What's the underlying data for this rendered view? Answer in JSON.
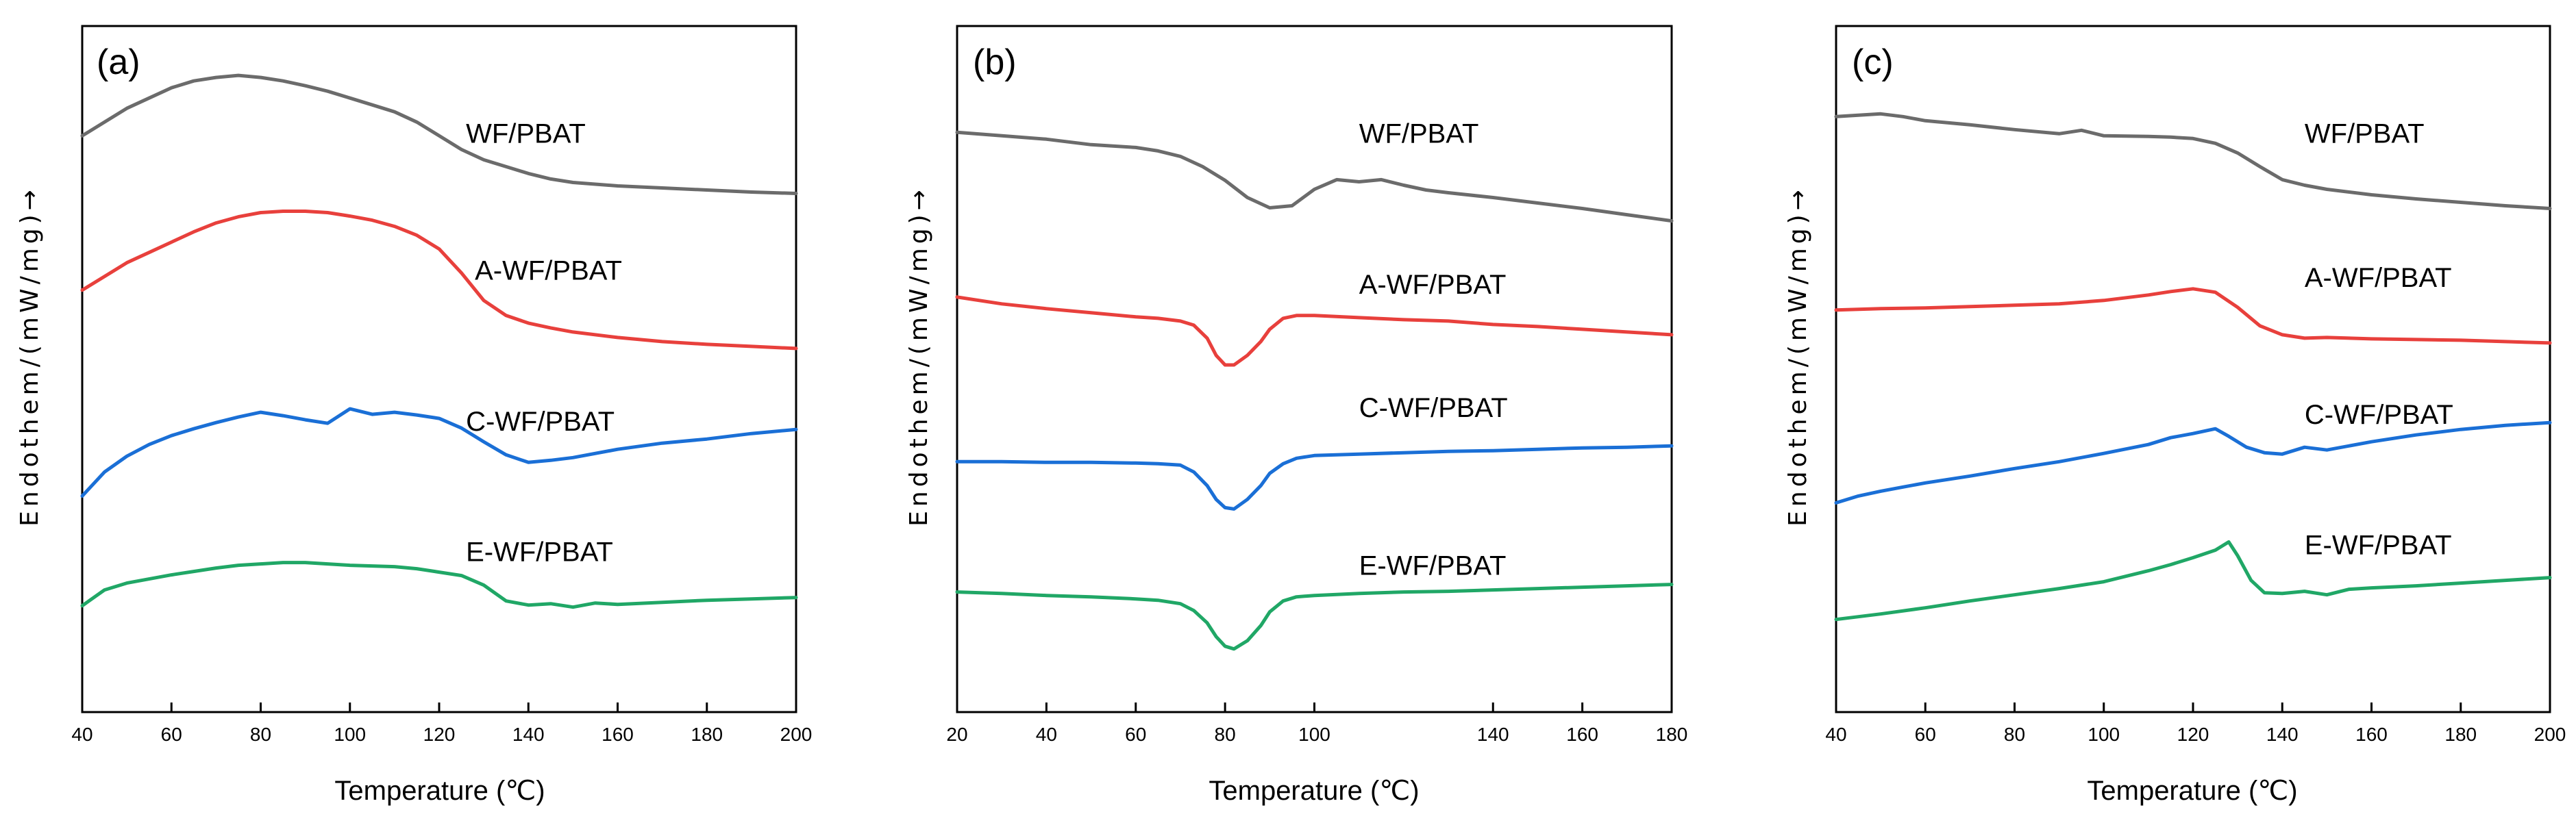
{
  "chart_data": [
    {
      "type": "line",
      "panel_label": "(a)",
      "xlabel": "Temperature (℃)",
      "ylabel": "Endothem/(mW/mg)→",
      "xlim": [
        40,
        200
      ],
      "ylim": [
        0,
        100
      ],
      "xticks": [
        40,
        60,
        80,
        100,
        120,
        140,
        160,
        180,
        200
      ],
      "grid": false,
      "series": [
        {
          "name": "WF/PBAT",
          "color": "#6b6b6b",
          "label_at": [
            126,
            83
          ],
          "x": [
            40,
            45,
            50,
            55,
            60,
            65,
            70,
            75,
            80,
            85,
            90,
            95,
            100,
            105,
            110,
            115,
            120,
            125,
            130,
            135,
            140,
            145,
            150,
            160,
            170,
            180,
            190,
            200
          ],
          "y": [
            84,
            86,
            88,
            89.5,
            91,
            92,
            92.5,
            92.8,
            92.5,
            92,
            91.3,
            90.5,
            89.5,
            88.5,
            87.5,
            86,
            84,
            82,
            80.5,
            79.5,
            78.5,
            77.7,
            77.2,
            76.7,
            76.4,
            76.1,
            75.8,
            75.6
          ]
        },
        {
          "name": "A-WF/PBAT",
          "color": "#e8403c",
          "label_at": [
            128,
            63
          ],
          "x": [
            40,
            45,
            50,
            55,
            60,
            65,
            70,
            75,
            80,
            85,
            90,
            95,
            100,
            105,
            110,
            115,
            120,
            125,
            130,
            135,
            140,
            145,
            150,
            160,
            170,
            180,
            190,
            200
          ],
          "y": [
            61.5,
            63.5,
            65.5,
            67,
            68.5,
            70,
            71.3,
            72.2,
            72.8,
            73,
            73,
            72.8,
            72.3,
            71.7,
            70.8,
            69.5,
            67.5,
            64,
            60,
            57.8,
            56.7,
            56,
            55.4,
            54.6,
            54,
            53.6,
            53.3,
            53
          ]
        },
        {
          "name": "C-WF/PBAT",
          "color": "#1a6fd6",
          "label_at": [
            126,
            41
          ],
          "x": [
            40,
            45,
            50,
            55,
            60,
            65,
            70,
            75,
            80,
            85,
            90,
            95,
            100,
            105,
            110,
            115,
            120,
            125,
            130,
            135,
            140,
            145,
            150,
            160,
            170,
            180,
            190,
            200
          ],
          "y": [
            31.5,
            35,
            37.3,
            39,
            40.3,
            41.3,
            42.2,
            43,
            43.7,
            43.2,
            42.6,
            42.1,
            44.2,
            43.4,
            43.7,
            43.3,
            42.8,
            41.4,
            39.4,
            37.5,
            36.4,
            36.7,
            37.1,
            38.3,
            39.2,
            39.8,
            40.6,
            41.2
          ]
        },
        {
          "name": "E-WF/PBAT",
          "color": "#20a766",
          "label_at": [
            126,
            22
          ],
          "x": [
            40,
            45,
            50,
            55,
            60,
            65,
            70,
            75,
            80,
            85,
            90,
            95,
            100,
            105,
            110,
            115,
            120,
            125,
            130,
            135,
            140,
            145,
            150,
            155,
            160,
            170,
            180,
            190,
            200
          ],
          "y": [
            15.5,
            17.8,
            18.8,
            19.4,
            20,
            20.5,
            21,
            21.4,
            21.6,
            21.8,
            21.8,
            21.6,
            21.4,
            21.3,
            21.2,
            20.9,
            20.4,
            19.9,
            18.5,
            16.2,
            15.6,
            15.8,
            15.3,
            15.9,
            15.7,
            16,
            16.3,
            16.5,
            16.7
          ]
        }
      ]
    },
    {
      "type": "line",
      "panel_label": "(b)",
      "xlabel": "Temperature (℃)",
      "ylabel": "Endothem/(mW/mg)→",
      "xlim": [
        20,
        180
      ],
      "ylim": [
        0,
        100
      ],
      "xticks": [
        20,
        40,
        60,
        80,
        100,
        140,
        160,
        180
      ],
      "grid": false,
      "series": [
        {
          "name": "WF/PBAT",
          "color": "#6b6b6b",
          "label_at": [
            110,
            83
          ],
          "x": [
            20,
            30,
            40,
            50,
            60,
            65,
            70,
            75,
            80,
            85,
            90,
            95,
            100,
            105,
            110,
            115,
            120,
            125,
            130,
            140,
            150,
            160,
            170,
            180
          ],
          "y": [
            84.5,
            84,
            83.5,
            82.7,
            82.3,
            81.8,
            81,
            79.5,
            77.5,
            75,
            73.5,
            73.8,
            76.2,
            77.6,
            77.3,
            77.6,
            76.8,
            76.1,
            75.7,
            75,
            74.2,
            73.4,
            72.5,
            71.6
          ]
        },
        {
          "name": "A-WF/PBAT",
          "color": "#e8403c",
          "label_at": [
            110,
            61
          ],
          "x": [
            20,
            30,
            40,
            50,
            60,
            65,
            70,
            73,
            76,
            78,
            80,
            82,
            85,
            88,
            90,
            93,
            96,
            100,
            110,
            120,
            130,
            140,
            150,
            160,
            170,
            180
          ],
          "y": [
            60.5,
            59.5,
            58.8,
            58.2,
            57.6,
            57.4,
            57,
            56.4,
            54.5,
            52,
            50.6,
            50.6,
            52,
            54,
            55.8,
            57.4,
            57.8,
            57.8,
            57.5,
            57.2,
            57,
            56.5,
            56.2,
            55.8,
            55.4,
            55
          ]
        },
        {
          "name": "C-WF/PBAT",
          "color": "#1a6fd6",
          "label_at": [
            110,
            43
          ],
          "x": [
            20,
            30,
            40,
            50,
            60,
            65,
            70,
            73,
            76,
            78,
            80,
            82,
            85,
            88,
            90,
            93,
            96,
            100,
            110,
            120,
            130,
            140,
            150,
            160,
            170,
            180
          ],
          "y": [
            36.5,
            36.5,
            36.4,
            36.4,
            36.3,
            36.2,
            36,
            35,
            33,
            31,
            29.8,
            29.6,
            31,
            33,
            34.8,
            36.2,
            37,
            37.4,
            37.6,
            37.8,
            38,
            38.1,
            38.3,
            38.5,
            38.6,
            38.8
          ]
        },
        {
          "name": "E-WF/PBAT",
          "color": "#20a766",
          "label_at": [
            110,
            20
          ],
          "x": [
            20,
            30,
            40,
            50,
            60,
            65,
            70,
            73,
            76,
            78,
            80,
            82,
            85,
            88,
            90,
            93,
            96,
            100,
            110,
            120,
            130,
            140,
            150,
            160,
            170,
            180
          ],
          "y": [
            17.5,
            17.3,
            17,
            16.8,
            16.5,
            16.3,
            15.8,
            14.8,
            13,
            11,
            9.6,
            9.2,
            10.4,
            12.6,
            14.6,
            16.2,
            16.8,
            17,
            17.3,
            17.5,
            17.6,
            17.8,
            18,
            18.2,
            18.4,
            18.6
          ]
        }
      ]
    },
    {
      "type": "line",
      "panel_label": "(c)",
      "xlabel": "Temperature (℃)",
      "ylabel": "Endothem/(mW/mg)→",
      "xlim": [
        40,
        200
      ],
      "ylim": [
        0,
        100
      ],
      "xticks": [
        40,
        60,
        80,
        100,
        120,
        140,
        160,
        180,
        200
      ],
      "grid": false,
      "series": [
        {
          "name": "WF/PBAT",
          "color": "#6b6b6b",
          "label_at": [
            145,
            83
          ],
          "x": [
            40,
            45,
            50,
            55,
            60,
            70,
            80,
            90,
            95,
            100,
            110,
            115,
            120,
            125,
            130,
            135,
            140,
            145,
            150,
            160,
            170,
            180,
            190,
            200
          ],
          "y": [
            86.8,
            87,
            87.2,
            86.8,
            86.2,
            85.6,
            84.9,
            84.3,
            84.8,
            84,
            83.9,
            83.8,
            83.6,
            82.9,
            81.5,
            79.5,
            77.6,
            76.8,
            76.2,
            75.4,
            74.8,
            74.3,
            73.8,
            73.4
          ]
        },
        {
          "name": "A-WF/PBAT",
          "color": "#e8403c",
          "label_at": [
            145,
            62
          ],
          "x": [
            40,
            50,
            60,
            70,
            80,
            90,
            100,
            110,
            115,
            120,
            125,
            130,
            135,
            140,
            145,
            150,
            160,
            170,
            180,
            190,
            200
          ],
          "y": [
            58.6,
            58.8,
            58.9,
            59.1,
            59.3,
            59.5,
            60,
            60.8,
            61.3,
            61.7,
            61.2,
            59,
            56.3,
            55,
            54.5,
            54.6,
            54.4,
            54.3,
            54.2,
            54,
            53.8
          ]
        },
        {
          "name": "C-WF/PBAT",
          "color": "#1a6fd6",
          "label_at": [
            145,
            42
          ],
          "x": [
            40,
            45,
            50,
            55,
            60,
            70,
            80,
            90,
            100,
            110,
            115,
            120,
            125,
            128,
            132,
            136,
            140,
            145,
            150,
            160,
            170,
            180,
            190,
            200
          ],
          "y": [
            30.5,
            31.5,
            32.2,
            32.8,
            33.4,
            34.4,
            35.5,
            36.5,
            37.7,
            39,
            40,
            40.6,
            41.3,
            40.2,
            38.6,
            37.8,
            37.6,
            38.6,
            38.2,
            39.4,
            40.4,
            41.2,
            41.8,
            42.2
          ]
        },
        {
          "name": "E-WF/PBAT",
          "color": "#20a766",
          "label_at": [
            145,
            23
          ],
          "x": [
            40,
            50,
            60,
            70,
            80,
            90,
            100,
            105,
            110,
            115,
            120,
            125,
            128,
            130,
            133,
            136,
            140,
            145,
            150,
            155,
            160,
            170,
            180,
            190,
            200
          ],
          "y": [
            13.5,
            14.3,
            15.2,
            16.2,
            17.1,
            18,
            19,
            19.8,
            20.6,
            21.5,
            22.5,
            23.6,
            24.8,
            22.8,
            19.2,
            17.4,
            17.3,
            17.6,
            17.1,
            17.9,
            18.1,
            18.4,
            18.8,
            19.2,
            19.6
          ]
        }
      ]
    }
  ]
}
